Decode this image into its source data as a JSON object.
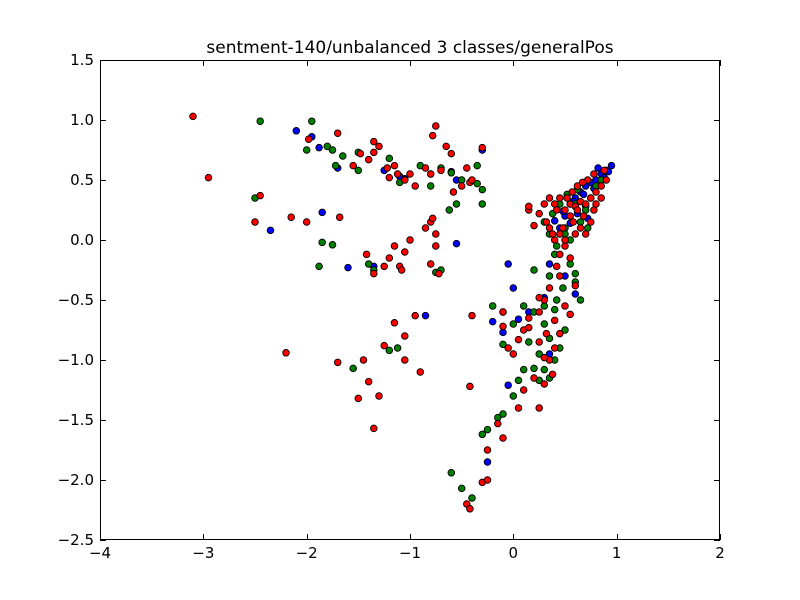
{
  "chart_data": {
    "type": "scatter",
    "title": "sentment-140/unbalanced 3 classes/generalPos",
    "xlabel": "",
    "ylabel": "",
    "xlim": [
      -4,
      2
    ],
    "ylim": [
      -2.5,
      1.5
    ],
    "xticks": [
      -4,
      -3,
      -2,
      -1,
      0,
      1,
      2
    ],
    "yticks": [
      -2.5,
      -2.0,
      -1.5,
      -1.0,
      -0.5,
      0.0,
      0.5,
      1.0,
      1.5
    ],
    "xtick_labels": [
      "−4",
      "−3",
      "−2",
      "−1",
      "0",
      "1",
      "2"
    ],
    "ytick_labels": [
      "−2.5",
      "−2.0",
      "−1.5",
      "−1.0",
      "−0.5",
      "0.0",
      "0.5",
      "1.0",
      "1.5"
    ],
    "grid": false,
    "series": [
      {
        "color": "#0000ff",
        "points": [
          [
            -2.1,
            0.91
          ],
          [
            -1.95,
            0.86
          ],
          [
            -1.88,
            0.77
          ],
          [
            -1.85,
            0.23
          ],
          [
            -1.7,
            0.6
          ],
          [
            -1.25,
            0.58
          ],
          [
            -1.1,
            0.53
          ],
          [
            -1.05,
            0.51
          ],
          [
            -0.8,
            0.55
          ],
          [
            -0.6,
            0.57
          ],
          [
            -0.55,
            0.5
          ],
          [
            -0.3,
            0.75
          ],
          [
            -0.55,
            -0.03
          ],
          [
            -1.6,
            -0.23
          ],
          [
            -1.35,
            -0.22
          ],
          [
            -0.85,
            -0.63
          ],
          [
            -2.35,
            0.08
          ],
          [
            -0.2,
            -0.68
          ],
          [
            -0.1,
            -0.77
          ],
          [
            -0.05,
            -0.2
          ],
          [
            0.0,
            -0.4
          ],
          [
            0.05,
            -0.66
          ],
          [
            -0.05,
            -1.21
          ],
          [
            -0.25,
            -1.85
          ],
          [
            0.15,
            -0.6
          ],
          [
            0.3,
            -0.48
          ],
          [
            0.35,
            -0.95
          ],
          [
            0.5,
            -0.3
          ],
          [
            0.6,
            -0.45
          ],
          [
            0.35,
            -0.2
          ],
          [
            0.45,
            0.1
          ],
          [
            0.5,
            0.2
          ],
          [
            0.55,
            0.3
          ],
          [
            0.6,
            0.35
          ],
          [
            0.65,
            0.4
          ],
          [
            0.7,
            0.45
          ],
          [
            0.75,
            0.48
          ],
          [
            0.8,
            0.5
          ],
          [
            0.85,
            0.55
          ],
          [
            0.9,
            0.58
          ],
          [
            0.95,
            0.62
          ],
          [
            0.88,
            0.52
          ],
          [
            0.78,
            0.43
          ],
          [
            0.68,
            0.38
          ],
          [
            0.58,
            0.32
          ],
          [
            0.48,
            0.24
          ],
          [
            0.4,
            0.16
          ],
          [
            0.7,
            0.28
          ],
          [
            0.62,
            0.22
          ],
          [
            0.55,
            0.14
          ],
          [
            0.72,
            0.18
          ],
          [
            0.82,
            0.6
          ],
          [
            0.92,
            0.57
          ]
        ]
      },
      {
        "color": "#008000",
        "points": [
          [
            -2.5,
            0.35
          ],
          [
            -2.45,
            0.99
          ],
          [
            -2.0,
            0.75
          ],
          [
            -1.95,
            0.99
          ],
          [
            -1.8,
            0.78
          ],
          [
            -1.75,
            0.75
          ],
          [
            -1.72,
            0.62
          ],
          [
            -1.65,
            0.7
          ],
          [
            -1.5,
            0.73
          ],
          [
            -1.5,
            0.58
          ],
          [
            -1.2,
            0.68
          ],
          [
            -1.1,
            0.48
          ],
          [
            -0.9,
            0.62
          ],
          [
            -0.8,
            0.45
          ],
          [
            -0.7,
            0.6
          ],
          [
            -0.6,
            0.56
          ],
          [
            -0.55,
            0.3
          ],
          [
            -0.5,
            0.5
          ],
          [
            -0.35,
            0.62
          ],
          [
            -0.35,
            0.47
          ],
          [
            -0.3,
            0.42
          ],
          [
            -0.3,
            0.3
          ],
          [
            -0.62,
            0.25
          ],
          [
            -1.85,
            -0.02
          ],
          [
            -1.75,
            -0.04
          ],
          [
            -1.88,
            -0.22
          ],
          [
            -1.4,
            -0.2
          ],
          [
            -1.35,
            -0.25
          ],
          [
            -1.2,
            -0.92
          ],
          [
            -1.12,
            -0.9
          ],
          [
            -1.55,
            -1.07
          ],
          [
            -0.75,
            -0.27
          ],
          [
            -0.7,
            -0.25
          ],
          [
            -0.6,
            -1.94
          ],
          [
            -0.5,
            -2.07
          ],
          [
            -0.4,
            -2.15
          ],
          [
            -0.3,
            -1.62
          ],
          [
            -0.25,
            -1.58
          ],
          [
            -0.15,
            -1.48
          ],
          [
            -0.1,
            -1.45
          ],
          [
            0.0,
            -1.3
          ],
          [
            0.05,
            -1.17
          ],
          [
            0.1,
            -1.08
          ],
          [
            0.2,
            -1.07
          ],
          [
            0.25,
            -1.17
          ],
          [
            0.3,
            -1.08
          ],
          [
            0.35,
            -1.15
          ],
          [
            0.4,
            -1.0
          ],
          [
            0.45,
            -0.9
          ],
          [
            0.5,
            -0.75
          ],
          [
            0.4,
            -0.58
          ],
          [
            0.3,
            -0.55
          ],
          [
            0.2,
            -0.6
          ],
          [
            0.1,
            -0.55
          ],
          [
            0.0,
            -0.7
          ],
          [
            -0.1,
            -0.6
          ],
          [
            -0.2,
            -0.55
          ],
          [
            -0.1,
            -0.87
          ],
          [
            0.15,
            -0.85
          ],
          [
            0.25,
            -0.95
          ],
          [
            0.35,
            -0.3
          ],
          [
            0.4,
            -0.12
          ],
          [
            0.55,
            -0.2
          ],
          [
            0.6,
            -0.28
          ],
          [
            0.65,
            -0.5
          ],
          [
            0.6,
            -0.35
          ],
          [
            0.35,
            0.05
          ],
          [
            0.42,
            -0.05
          ],
          [
            0.5,
            0.1
          ],
          [
            0.55,
            0.0
          ],
          [
            0.5,
            0.05
          ],
          [
            0.65,
            0.15
          ],
          [
            0.7,
            0.25
          ],
          [
            0.75,
            0.35
          ],
          [
            0.8,
            0.45
          ],
          [
            0.85,
            0.5
          ],
          [
            0.62,
            0.42
          ],
          [
            0.6,
            0.3
          ],
          [
            0.52,
            0.38
          ],
          [
            0.45,
            0.3
          ],
          [
            0.38,
            0.22
          ],
          [
            0.3,
            0.15
          ],
          [
            0.72,
            0.1
          ],
          [
            0.48,
            -0.4
          ],
          [
            0.42,
            -0.5
          ],
          [
            0.3,
            -0.7
          ],
          [
            0.35,
            -0.82
          ],
          [
            0.2,
            -0.25
          ]
        ]
      },
      {
        "color": "#ff0000",
        "points": [
          [
            -3.1,
            1.03
          ],
          [
            -2.95,
            0.52
          ],
          [
            -2.45,
            0.37
          ],
          [
            -2.5,
            0.15
          ],
          [
            -2.2,
            -0.94
          ],
          [
            -2.15,
            0.19
          ],
          [
            -2.0,
            0.15
          ],
          [
            -1.98,
            0.84
          ],
          [
            -1.7,
            0.89
          ],
          [
            -1.68,
            0.19
          ],
          [
            -1.7,
            -1.02
          ],
          [
            -1.5,
            -1.32
          ],
          [
            -1.45,
            -1.0
          ],
          [
            -1.4,
            -1.18
          ],
          [
            -1.35,
            -1.57
          ],
          [
            -1.3,
            -1.3
          ],
          [
            -1.25,
            -0.88
          ],
          [
            -1.15,
            -0.69
          ],
          [
            -1.05,
            -0.8
          ],
          [
            -1.05,
            -1.0
          ],
          [
            -0.9,
            -1.1
          ],
          [
            -0.95,
            -0.63
          ],
          [
            -1.55,
            0.62
          ],
          [
            -1.48,
            0.72
          ],
          [
            -1.4,
            0.67
          ],
          [
            -1.35,
            0.73
          ],
          [
            -1.35,
            0.82
          ],
          [
            -1.3,
            0.78
          ],
          [
            -1.22,
            0.6
          ],
          [
            -1.2,
            0.52
          ],
          [
            -1.15,
            0.62
          ],
          [
            -1.12,
            0.55
          ],
          [
            -1.05,
            0.5
          ],
          [
            -1.0,
            0.55
          ],
          [
            -0.95,
            0.45
          ],
          [
            -0.85,
            0.6
          ],
          [
            -0.8,
            0.55
          ],
          [
            -0.78,
            0.87
          ],
          [
            -0.75,
            0.95
          ],
          [
            -0.7,
            0.58
          ],
          [
            -0.65,
            0.78
          ],
          [
            -0.6,
            0.72
          ],
          [
            -0.58,
            0.4
          ],
          [
            -0.5,
            0.45
          ],
          [
            -0.45,
            0.6
          ],
          [
            -0.42,
            0.48
          ],
          [
            -0.4,
            0.5
          ],
          [
            -0.3,
            0.77
          ],
          [
            -0.8,
            0.15
          ],
          [
            -0.85,
            0.1
          ],
          [
            -0.78,
            0.18
          ],
          [
            -0.75,
            0.05
          ],
          [
            -0.75,
            -0.05
          ],
          [
            -0.8,
            -0.2
          ],
          [
            -0.72,
            -0.28
          ],
          [
            -1.0,
            0.0
          ],
          [
            -1.05,
            -0.1
          ],
          [
            -1.15,
            -0.05
          ],
          [
            -1.2,
            -0.15
          ],
          [
            -1.25,
            -0.22
          ],
          [
            -1.35,
            -0.28
          ],
          [
            -1.42,
            -0.12
          ],
          [
            -1.1,
            -0.22
          ],
          [
            -1.08,
            -0.25
          ],
          [
            -0.4,
            -0.63
          ],
          [
            -0.42,
            -1.22
          ],
          [
            -0.45,
            -2.2
          ],
          [
            -0.42,
            -2.24
          ],
          [
            -0.3,
            -2.02
          ],
          [
            -0.25,
            -2.0
          ],
          [
            -0.25,
            -1.75
          ],
          [
            -0.15,
            -1.53
          ],
          [
            -0.1,
            -1.65
          ],
          [
            0.05,
            -1.4
          ],
          [
            0.1,
            -1.25
          ],
          [
            0.2,
            -1.15
          ],
          [
            0.25,
            -1.4
          ],
          [
            0.3,
            -1.2
          ],
          [
            0.35,
            -1.0
          ],
          [
            0.38,
            -1.12
          ],
          [
            0.4,
            -0.9
          ],
          [
            0.45,
            -0.78
          ],
          [
            0.5,
            -0.55
          ],
          [
            0.55,
            -0.62
          ],
          [
            0.6,
            -0.38
          ],
          [
            0.45,
            -0.3
          ],
          [
            0.35,
            -0.4
          ],
          [
            0.3,
            -0.5
          ],
          [
            0.15,
            -0.65
          ],
          [
            0.1,
            -0.75
          ],
          [
            0.05,
            -0.83
          ],
          [
            0.0,
            -0.95
          ],
          [
            -0.05,
            -0.9
          ],
          [
            -0.1,
            -0.72
          ],
          [
            -0.1,
            -0.6
          ],
          [
            0.25,
            -0.6
          ],
          [
            0.25,
            -0.85
          ],
          [
            0.3,
            -0.98
          ],
          [
            0.15,
            -0.73
          ],
          [
            0.4,
            -0.67
          ],
          [
            0.4,
            0.0
          ],
          [
            0.45,
            -0.12
          ],
          [
            0.5,
            -0.05
          ],
          [
            0.55,
            -0.15
          ],
          [
            0.15,
            0.25
          ],
          [
            0.15,
            0.28
          ],
          [
            0.3,
            0.3
          ],
          [
            0.35,
            0.35
          ],
          [
            0.4,
            0.3
          ],
          [
            0.45,
            0.35
          ],
          [
            0.5,
            0.25
          ],
          [
            0.55,
            0.3
          ],
          [
            0.6,
            0.28
          ],
          [
            0.65,
            0.32
          ],
          [
            0.7,
            0.3
          ],
          [
            0.75,
            0.35
          ],
          [
            0.8,
            0.4
          ],
          [
            0.85,
            0.45
          ],
          [
            0.9,
            0.5
          ],
          [
            0.72,
            0.5
          ],
          [
            0.62,
            0.45
          ],
          [
            0.52,
            0.35
          ],
          [
            0.42,
            0.25
          ],
          [
            0.32,
            0.15
          ],
          [
            0.38,
            0.05
          ],
          [
            0.48,
            0.1
          ],
          [
            0.58,
            0.15
          ],
          [
            0.68,
            0.2
          ],
          [
            0.78,
            0.25
          ],
          [
            0.55,
            0.2
          ],
          [
            0.65,
            0.1
          ],
          [
            0.7,
            0.05
          ],
          [
            0.6,
            0.05
          ],
          [
            0.5,
            0.0
          ],
          [
            0.45,
            0.05
          ],
          [
            0.35,
            0.1
          ],
          [
            0.25,
            0.22
          ],
          [
            0.2,
            0.12
          ],
          [
            0.75,
            0.15
          ],
          [
            0.8,
            0.3
          ],
          [
            0.85,
            0.35
          ],
          [
            0.62,
            0.25
          ],
          [
            0.57,
            0.4
          ],
          [
            0.67,
            0.48
          ],
          [
            0.78,
            0.55
          ],
          [
            0.88,
            0.58
          ],
          [
            0.25,
            -0.48
          ],
          [
            0.42,
            -0.22
          ],
          [
            0.32,
            -0.78
          ]
        ]
      }
    ]
  }
}
